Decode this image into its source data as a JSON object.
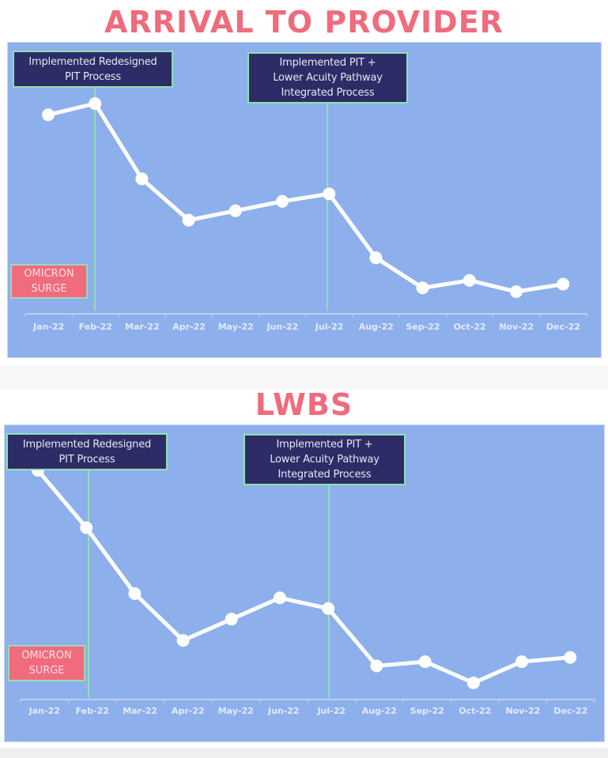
{
  "colors": {
    "title": "#f06b7d",
    "panel_bg": "#8db0ec",
    "line": "#ffffff",
    "annotation_bg": "#2d2c66",
    "annotation_border": "#8fe0b0",
    "omicron_bg": "#f06b7d",
    "axis": "#c7d7f5",
    "marker_line": "#8fe0b0"
  },
  "charts": [
    {
      "title": "ARRIVAL TO PROVIDER",
      "annotations": {
        "redesign": {
          "line1": "Implemented Redesigned",
          "line2": "PIT Process"
        },
        "integrated": {
          "line1": "Implemented PIT +",
          "line2": "Lower Acuity Pathway",
          "line3": "Integrated Process"
        },
        "omicron": {
          "line1": "OMICRON",
          "line2": "SURGE"
        }
      }
    },
    {
      "title": "LWBS",
      "annotations": {
        "redesign": {
          "line1": "Implemented Redesigned",
          "line2": "PIT Process"
        },
        "integrated": {
          "line1": "Implemented PIT +",
          "line2": "Lower Acuity Pathway",
          "line3": "Integrated Process"
        },
        "omicron": {
          "line1": "OMICRON",
          "line2": "SURGE"
        }
      }
    }
  ],
  "chart_data": [
    {
      "type": "line",
      "title": "ARRIVAL TO PROVIDER",
      "xlabel": "",
      "ylabel": "",
      "categories": [
        "Jan-22",
        "Feb-22",
        "Mar-22",
        "Apr-22",
        "May-22",
        "Jun-22",
        "Jul-22",
        "Aug-22",
        "Sep-22",
        "Oct-22",
        "Nov-22",
        "Dec-22"
      ],
      "values": [
        94,
        100,
        60,
        38,
        43,
        48,
        52,
        18,
        2,
        6,
        0,
        4
      ],
      "value_note": "No y-axis shown; values are relative (0-100) estimated from point heights",
      "ylim": [
        0,
        100
      ],
      "grid": false,
      "legend": null,
      "annotations": [
        {
          "x": "Feb-22",
          "text": "Implemented Redesigned PIT Process"
        },
        {
          "x": "Jul-22",
          "text": "Implemented PIT + Lower Acuity Pathway Integrated Process"
        },
        {
          "x": "Jan-22",
          "text": "OMICRON SURGE"
        }
      ]
    },
    {
      "type": "line",
      "title": "LWBS",
      "xlabel": "",
      "ylabel": "",
      "categories": [
        "Jan-22",
        "Feb-22",
        "Mar-22",
        "Apr-22",
        "May-22",
        "Jun-22",
        "Jul-22",
        "Aug-22",
        "Sep-22",
        "Oct-22",
        "Nov-22",
        "Dec-22"
      ],
      "values": [
        100,
        73,
        42,
        20,
        30,
        40,
        35,
        8,
        10,
        0,
        10,
        12
      ],
      "value_note": "No y-axis shown; values are relative (0-100) estimated from point heights",
      "ylim": [
        0,
        100
      ],
      "grid": false,
      "legend": null,
      "annotations": [
        {
          "x": "Feb-22",
          "text": "Implemented Redesigned PIT Process"
        },
        {
          "x": "Jul-22",
          "text": "Implemented PIT + Lower Acuity Pathway Integrated Process"
        },
        {
          "x": "Jan-22",
          "text": "OMICRON SURGE"
        }
      ]
    }
  ]
}
